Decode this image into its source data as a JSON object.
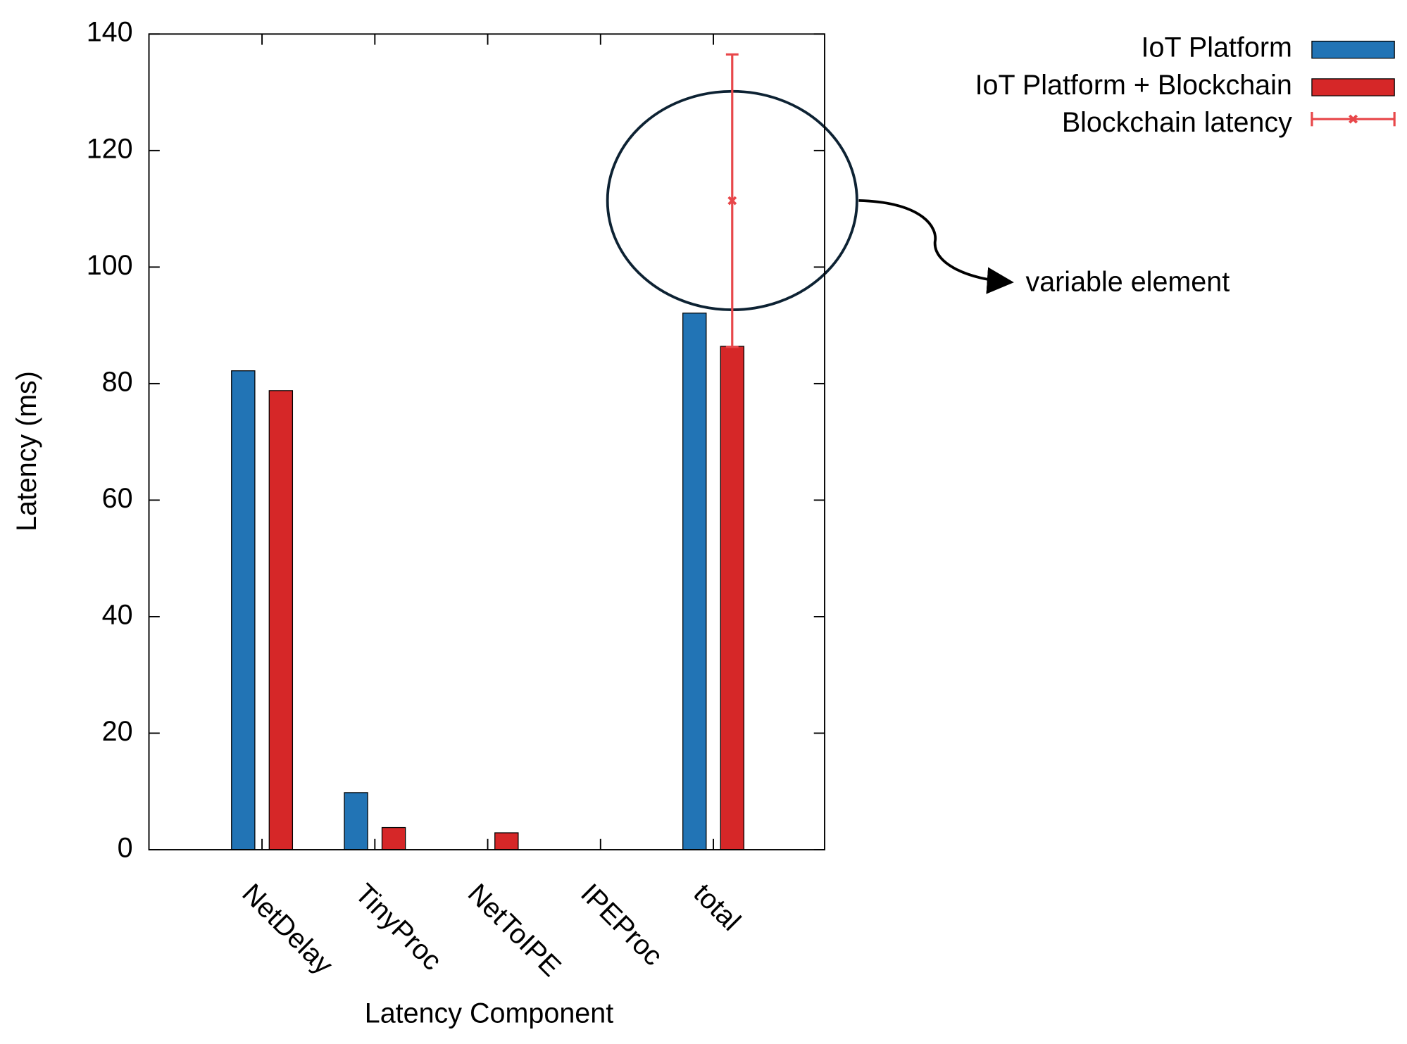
{
  "chart_data": {
    "type": "bar",
    "x_label": "Latency Component",
    "y_label": "Latency (ms)",
    "categories": [
      "NetDelay",
      "TinyProc",
      "NetToIPE",
      "IPEProc",
      "total"
    ],
    "series": [
      {
        "name": "IoT Platform",
        "color": "#2274b5",
        "values": [
          82.2,
          9.8,
          0,
          0,
          92.1
        ]
      },
      {
        "name": "IoT Platform + Blockchain",
        "color": "#d62728",
        "values": [
          78.8,
          3.8,
          2.9,
          0,
          86.4
        ]
      }
    ],
    "error_series": {
      "name": "Blockchain latency",
      "color": "#e8474a",
      "values": [
        null,
        null,
        null,
        null,
        111.4
      ],
      "errors": [
        null,
        null,
        null,
        null,
        25.1
      ]
    },
    "ylim": [
      0,
      140
    ],
    "yticks": [
      0,
      20,
      40,
      60,
      80,
      100,
      120,
      140
    ],
    "legend": "top-right",
    "annotation": "variable element"
  }
}
